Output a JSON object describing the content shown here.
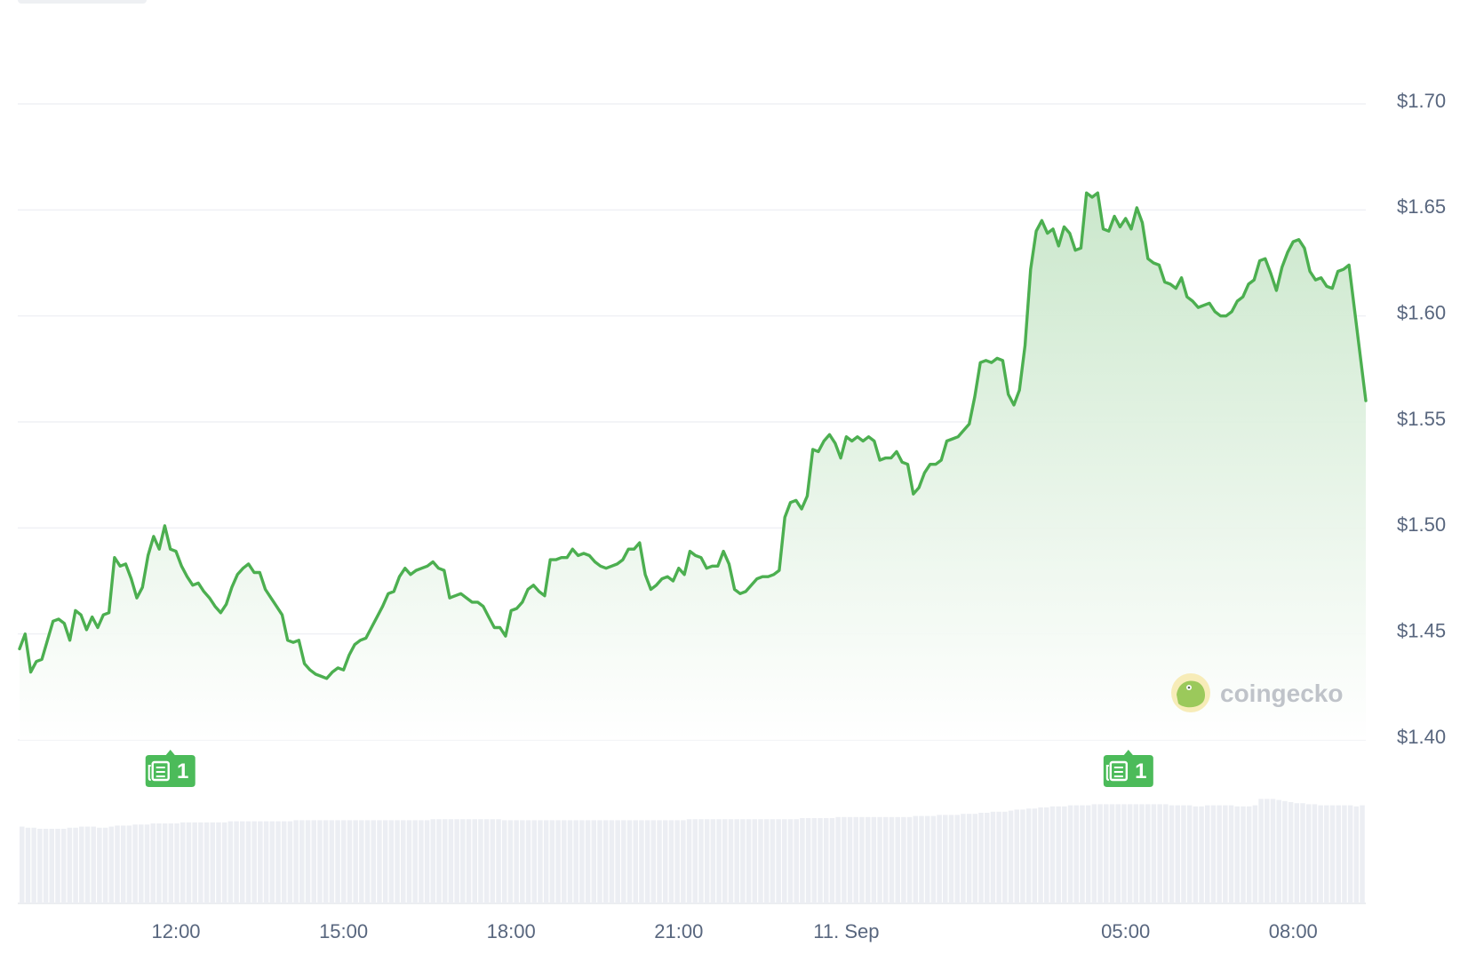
{
  "chart_data": {
    "type": "area",
    "title": "",
    "xlabel": "",
    "ylabel": "",
    "y_axis": {
      "ticks": [
        1.4,
        1.45,
        1.5,
        1.55,
        1.6,
        1.65,
        1.7
      ],
      "tick_labels": [
        "$1.40",
        "$1.45",
        "$1.50",
        "$1.55",
        "$1.60",
        "$1.65",
        "$1.70"
      ],
      "ylim": [
        1.4,
        1.7
      ],
      "position": "right"
    },
    "x_axis": {
      "unit": "hours",
      "range": [
        9.2,
        33.3
      ],
      "ticks": [
        {
          "x": 12,
          "label": "12:00"
        },
        {
          "x": 15,
          "label": "15:00"
        },
        {
          "x": 18,
          "label": "18:00"
        },
        {
          "x": 21,
          "label": "21:00"
        },
        {
          "x": 24,
          "label": "11. Sep"
        },
        {
          "x": 29,
          "label": "05:00"
        },
        {
          "x": 32,
          "label": "08:00"
        }
      ]
    },
    "grid": true,
    "legend": "none",
    "colors": {
      "line": "#4caf50",
      "fill_top": "#c8e6c9",
      "fill_bottom": "#ffffff",
      "grid": "#eceef2",
      "tick_text": "#58667e",
      "volume": "#eceef3",
      "news": "#4cbb5a"
    },
    "series": [
      {
        "values": [
          [
            9.2,
            1.443
          ],
          [
            9.3,
            1.45
          ],
          [
            9.4,
            1.432
          ],
          [
            9.5,
            1.437
          ],
          [
            9.6,
            1.438
          ],
          [
            9.7,
            1.447
          ],
          [
            9.8,
            1.456
          ],
          [
            9.9,
            1.457
          ],
          [
            10.0,
            1.455
          ],
          [
            10.1,
            1.447
          ],
          [
            10.2,
            1.461
          ],
          [
            10.3,
            1.459
          ],
          [
            10.4,
            1.452
          ],
          [
            10.5,
            1.458
          ],
          [
            10.6,
            1.453
          ],
          [
            10.7,
            1.459
          ],
          [
            10.8,
            1.46
          ],
          [
            10.9,
            1.486
          ],
          [
            11.0,
            1.482
          ],
          [
            11.1,
            1.483
          ],
          [
            11.2,
            1.476
          ],
          [
            11.3,
            1.467
          ],
          [
            11.4,
            1.472
          ],
          [
            11.5,
            1.487
          ],
          [
            11.6,
            1.496
          ],
          [
            11.7,
            1.49
          ],
          [
            11.8,
            1.501
          ],
          [
            11.9,
            1.49
          ],
          [
            12.0,
            1.489
          ],
          [
            12.1,
            1.482
          ],
          [
            12.2,
            1.477
          ],
          [
            12.3,
            1.473
          ],
          [
            12.4,
            1.474
          ],
          [
            12.5,
            1.47
          ],
          [
            12.6,
            1.467
          ],
          [
            12.7,
            1.463
          ],
          [
            12.8,
            1.46
          ],
          [
            12.9,
            1.464
          ],
          [
            13.0,
            1.472
          ],
          [
            13.1,
            1.478
          ],
          [
            13.2,
            1.481
          ],
          [
            13.3,
            1.483
          ],
          [
            13.4,
            1.479
          ],
          [
            13.5,
            1.479
          ],
          [
            13.6,
            1.471
          ],
          [
            13.7,
            1.467
          ],
          [
            13.8,
            1.463
          ],
          [
            13.9,
            1.459
          ],
          [
            14.0,
            1.447
          ],
          [
            14.1,
            1.446
          ],
          [
            14.2,
            1.447
          ],
          [
            14.3,
            1.436
          ],
          [
            14.4,
            1.433
          ],
          [
            14.5,
            1.431
          ],
          [
            14.6,
            1.43
          ],
          [
            14.7,
            1.429
          ],
          [
            14.8,
            1.432
          ],
          [
            14.9,
            1.434
          ],
          [
            15.0,
            1.433
          ],
          [
            15.1,
            1.44
          ],
          [
            15.2,
            1.445
          ],
          [
            15.3,
            1.447
          ],
          [
            15.4,
            1.448
          ],
          [
            15.5,
            1.453
          ],
          [
            15.6,
            1.458
          ],
          [
            15.7,
            1.463
          ],
          [
            15.8,
            1.469
          ],
          [
            15.9,
            1.47
          ],
          [
            16.0,
            1.477
          ],
          [
            16.1,
            1.481
          ],
          [
            16.2,
            1.478
          ],
          [
            16.3,
            1.48
          ],
          [
            16.4,
            1.481
          ],
          [
            16.5,
            1.482
          ],
          [
            16.6,
            1.484
          ],
          [
            16.7,
            1.481
          ],
          [
            16.8,
            1.48
          ],
          [
            16.9,
            1.467
          ],
          [
            17.0,
            1.468
          ],
          [
            17.1,
            1.469
          ],
          [
            17.2,
            1.467
          ],
          [
            17.3,
            1.465
          ],
          [
            17.4,
            1.465
          ],
          [
            17.5,
            1.463
          ],
          [
            17.6,
            1.458
          ],
          [
            17.7,
            1.453
          ],
          [
            17.8,
            1.453
          ],
          [
            17.9,
            1.449
          ],
          [
            18.0,
            1.461
          ],
          [
            18.1,
            1.462
          ],
          [
            18.2,
            1.465
          ],
          [
            18.3,
            1.471
          ],
          [
            18.4,
            1.473
          ],
          [
            18.5,
            1.47
          ],
          [
            18.6,
            1.468
          ],
          [
            18.7,
            1.485
          ],
          [
            18.8,
            1.485
          ],
          [
            18.9,
            1.486
          ],
          [
            19.0,
            1.486
          ],
          [
            19.1,
            1.49
          ],
          [
            19.2,
            1.487
          ],
          [
            19.3,
            1.488
          ],
          [
            19.4,
            1.487
          ],
          [
            19.5,
            1.484
          ],
          [
            19.6,
            1.482
          ],
          [
            19.7,
            1.481
          ],
          [
            19.8,
            1.482
          ],
          [
            19.9,
            1.483
          ],
          [
            20.0,
            1.485
          ],
          [
            20.1,
            1.49
          ],
          [
            20.2,
            1.49
          ],
          [
            20.3,
            1.493
          ],
          [
            20.4,
            1.478
          ],
          [
            20.5,
            1.471
          ],
          [
            20.6,
            1.473
          ],
          [
            20.7,
            1.476
          ],
          [
            20.8,
            1.477
          ],
          [
            20.9,
            1.475
          ],
          [
            21.0,
            1.481
          ],
          [
            21.1,
            1.478
          ],
          [
            21.2,
            1.489
          ],
          [
            21.3,
            1.487
          ],
          [
            21.4,
            1.486
          ],
          [
            21.5,
            1.481
          ],
          [
            21.6,
            1.482
          ],
          [
            21.7,
            1.482
          ],
          [
            21.8,
            1.489
          ],
          [
            21.9,
            1.483
          ],
          [
            22.0,
            1.471
          ],
          [
            22.1,
            1.469
          ],
          [
            22.2,
            1.47
          ],
          [
            22.3,
            1.473
          ],
          [
            22.4,
            1.476
          ],
          [
            22.5,
            1.477
          ],
          [
            22.6,
            1.477
          ],
          [
            22.7,
            1.478
          ],
          [
            22.8,
            1.48
          ],
          [
            22.9,
            1.505
          ],
          [
            23.0,
            1.512
          ],
          [
            23.1,
            1.513
          ],
          [
            23.2,
            1.509
          ],
          [
            23.3,
            1.515
          ],
          [
            23.4,
            1.537
          ],
          [
            23.5,
            1.536
          ],
          [
            23.6,
            1.541
          ],
          [
            23.7,
            1.544
          ],
          [
            23.8,
            1.54
          ],
          [
            23.9,
            1.533
          ],
          [
            24.0,
            1.543
          ],
          [
            24.1,
            1.541
          ],
          [
            24.2,
            1.543
          ],
          [
            24.3,
            1.541
          ],
          [
            24.4,
            1.543
          ],
          [
            24.5,
            1.541
          ],
          [
            24.6,
            1.532
          ],
          [
            24.7,
            1.533
          ],
          [
            24.8,
            1.533
          ],
          [
            24.9,
            1.536
          ],
          [
            25.0,
            1.531
          ],
          [
            25.1,
            1.53
          ],
          [
            25.2,
            1.516
          ],
          [
            25.3,
            1.519
          ],
          [
            25.4,
            1.526
          ],
          [
            25.5,
            1.53
          ],
          [
            25.6,
            1.53
          ],
          [
            25.7,
            1.532
          ],
          [
            25.8,
            1.541
          ],
          [
            25.9,
            1.542
          ],
          [
            26.0,
            1.543
          ],
          [
            26.1,
            1.546
          ],
          [
            26.2,
            1.549
          ],
          [
            26.3,
            1.562
          ],
          [
            26.4,
            1.578
          ],
          [
            26.5,
            1.579
          ],
          [
            26.6,
            1.578
          ],
          [
            26.7,
            1.58
          ],
          [
            26.8,
            1.579
          ],
          [
            26.9,
            1.563
          ],
          [
            27.0,
            1.558
          ],
          [
            27.1,
            1.565
          ],
          [
            27.2,
            1.586
          ],
          [
            27.3,
            1.622
          ],
          [
            27.4,
            1.64
          ],
          [
            27.5,
            1.645
          ],
          [
            27.6,
            1.639
          ],
          [
            27.7,
            1.641
          ],
          [
            27.8,
            1.633
          ],
          [
            27.9,
            1.642
          ],
          [
            28.0,
            1.639
          ],
          [
            28.1,
            1.631
          ],
          [
            28.2,
            1.632
          ],
          [
            28.3,
            1.658
          ],
          [
            28.4,
            1.656
          ],
          [
            28.5,
            1.658
          ],
          [
            28.6,
            1.641
          ],
          [
            28.7,
            1.64
          ],
          [
            28.8,
            1.647
          ],
          [
            28.9,
            1.642
          ],
          [
            29.0,
            1.646
          ],
          [
            29.1,
            1.641
          ],
          [
            29.2,
            1.651
          ],
          [
            29.3,
            1.644
          ],
          [
            29.4,
            1.627
          ],
          [
            29.5,
            1.625
          ],
          [
            29.6,
            1.624
          ],
          [
            29.7,
            1.616
          ],
          [
            29.8,
            1.615
          ],
          [
            29.9,
            1.613
          ],
          [
            30.0,
            1.618
          ],
          [
            30.1,
            1.609
          ],
          [
            30.2,
            1.607
          ],
          [
            30.3,
            1.604
          ],
          [
            30.4,
            1.605
          ],
          [
            30.5,
            1.606
          ],
          [
            30.6,
            1.602
          ],
          [
            30.7,
            1.6
          ],
          [
            30.8,
            1.6
          ],
          [
            30.9,
            1.602
          ],
          [
            31.0,
            1.607
          ],
          [
            31.1,
            1.609
          ],
          [
            31.2,
            1.615
          ],
          [
            31.3,
            1.617
          ],
          [
            31.4,
            1.626
          ],
          [
            31.5,
            1.627
          ],
          [
            31.6,
            1.62
          ],
          [
            31.7,
            1.612
          ],
          [
            31.8,
            1.623
          ],
          [
            31.9,
            1.63
          ],
          [
            32.0,
            1.635
          ],
          [
            32.1,
            1.636
          ],
          [
            32.2,
            1.632
          ],
          [
            32.3,
            1.621
          ],
          [
            32.4,
            1.617
          ],
          [
            32.5,
            1.618
          ],
          [
            32.6,
            1.614
          ],
          [
            32.7,
            1.613
          ],
          [
            32.8,
            1.621
          ],
          [
            32.9,
            1.622
          ],
          [
            33.0,
            1.624
          ],
          [
            33.3,
            1.56
          ]
        ]
      }
    ],
    "volume": {
      "ylim": [
        0,
        1
      ],
      "note": "relative volume bars at bottom, no axis",
      "values": [
        0.72,
        0.71,
        0.71,
        0.7,
        0.7,
        0.7,
        0.7,
        0.7,
        0.71,
        0.71,
        0.72,
        0.72,
        0.72,
        0.71,
        0.71,
        0.72,
        0.73,
        0.73,
        0.73,
        0.74,
        0.74,
        0.74,
        0.75,
        0.75,
        0.75,
        0.75,
        0.75,
        0.76,
        0.76,
        0.76,
        0.76,
        0.76,
        0.76,
        0.76,
        0.76,
        0.77,
        0.77,
        0.77,
        0.77,
        0.77,
        0.77,
        0.77,
        0.77,
        0.77,
        0.77,
        0.77,
        0.78,
        0.78,
        0.78,
        0.78,
        0.78,
        0.78,
        0.78,
        0.78,
        0.78,
        0.78,
        0.78,
        0.78,
        0.78,
        0.78,
        0.78,
        0.78,
        0.78,
        0.78,
        0.78,
        0.78,
        0.78,
        0.78,
        0.78,
        0.79,
        0.79,
        0.79,
        0.79,
        0.79,
        0.79,
        0.79,
        0.79,
        0.79,
        0.79,
        0.79,
        0.79,
        0.78,
        0.78,
        0.78,
        0.78,
        0.78,
        0.78,
        0.78,
        0.78,
        0.78,
        0.78,
        0.78,
        0.78,
        0.78,
        0.78,
        0.78,
        0.78,
        0.78,
        0.78,
        0.78,
        0.78,
        0.78,
        0.78,
        0.78,
        0.78,
        0.78,
        0.78,
        0.78,
        0.78,
        0.78,
        0.78,
        0.78,
        0.79,
        0.79,
        0.79,
        0.79,
        0.79,
        0.79,
        0.79,
        0.79,
        0.79,
        0.79,
        0.79,
        0.79,
        0.79,
        0.79,
        0.79,
        0.79,
        0.79,
        0.79,
        0.79,
        0.8,
        0.8,
        0.8,
        0.8,
        0.8,
        0.8,
        0.81,
        0.81,
        0.81,
        0.81,
        0.81,
        0.81,
        0.81,
        0.81,
        0.81,
        0.81,
        0.81,
        0.81,
        0.81,
        0.82,
        0.82,
        0.82,
        0.82,
        0.83,
        0.83,
        0.83,
        0.83,
        0.84,
        0.84,
        0.84,
        0.85,
        0.85,
        0.86,
        0.86,
        0.86,
        0.87,
        0.88,
        0.88,
        0.89,
        0.89,
        0.9,
        0.9,
        0.91,
        0.91,
        0.91,
        0.92,
        0.92,
        0.92,
        0.92,
        0.93,
        0.93,
        0.93,
        0.93,
        0.93,
        0.93,
        0.93,
        0.93,
        0.93,
        0.93,
        0.93,
        0.93,
        0.93,
        0.92,
        0.92,
        0.92,
        0.92,
        0.91,
        0.91,
        0.92,
        0.92,
        0.92,
        0.92,
        0.92,
        0.91,
        0.91,
        0.91,
        0.92,
        0.98,
        0.98,
        0.98,
        0.97,
        0.96,
        0.95,
        0.94,
        0.94,
        0.93,
        0.93,
        0.92,
        0.92,
        0.92,
        0.92,
        0.92,
        0.92,
        0.91,
        0.92
      ]
    },
    "news_markers": [
      {
        "x": 11.9,
        "label": "1"
      },
      {
        "x": 29.05,
        "label": "1"
      }
    ],
    "watermark": "coingecko"
  }
}
